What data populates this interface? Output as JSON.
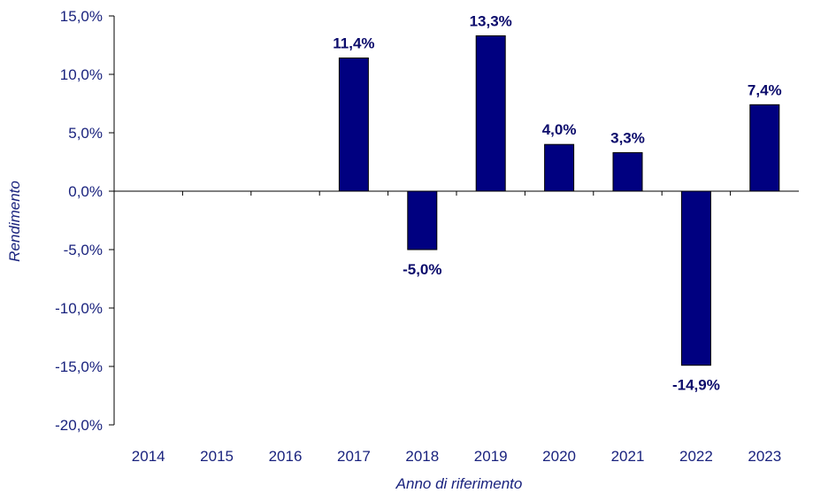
{
  "chart_data": {
    "type": "bar",
    "categories": [
      "2014",
      "2015",
      "2016",
      "2017",
      "2018",
      "2019",
      "2020",
      "2021",
      "2022",
      "2023"
    ],
    "values": [
      null,
      null,
      null,
      11.4,
      -5.0,
      13.3,
      4.0,
      3.3,
      -14.9,
      7.4
    ],
    "data_labels": [
      "",
      "",
      "",
      "11,4%",
      "-5,0%",
      "13,3%",
      "4,0%",
      "3,3%",
      "-14,9%",
      "7,4%"
    ],
    "yticks": [
      15,
      10,
      5,
      0,
      -5,
      -10,
      -15,
      -20
    ],
    "ytick_labels": [
      "15,0%",
      "10,0%",
      "5,0%",
      "0,0%",
      "-5,0%",
      "-10,0%",
      "-15,0%",
      "-20,0%"
    ],
    "ylim": [
      -20,
      15
    ],
    "xlabel": "Anno di riferimento",
    "ylabel": "Rendimento",
    "grid": false,
    "bar_color": "#000080",
    "text_color": "#1a237e"
  }
}
